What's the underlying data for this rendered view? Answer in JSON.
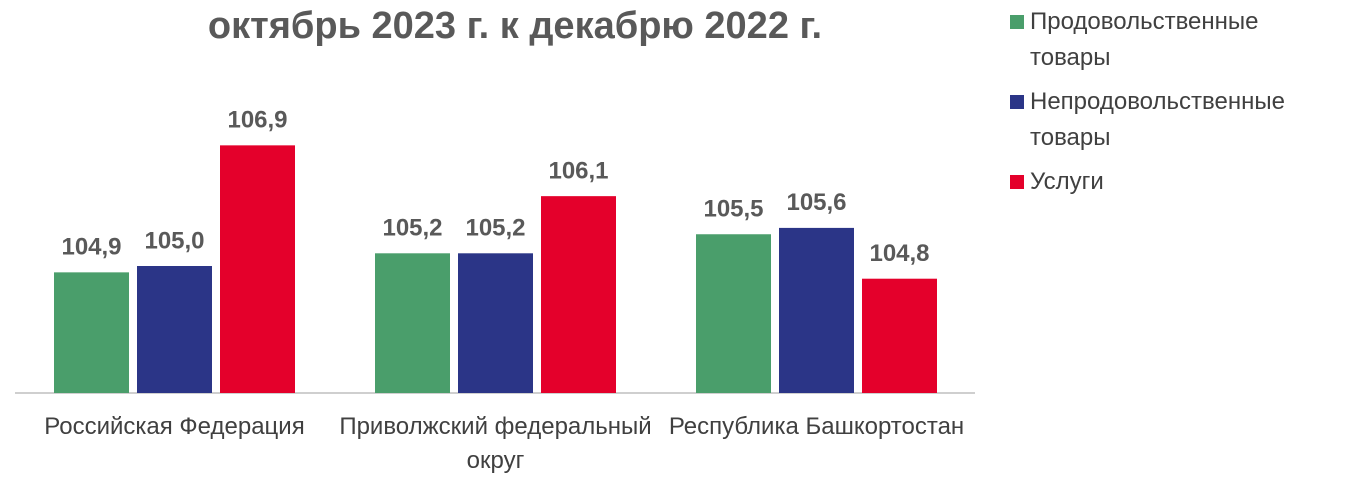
{
  "chart_data": {
    "type": "bar",
    "title": "октябрь 2023 г. к декабрю 2022 г.",
    "categories": [
      "Российская Федерация",
      "Приволжский федеральный округ",
      "Республика Башкортостан"
    ],
    "series": [
      {
        "name": "Продовольственные товары",
        "color": "#4a9e6b",
        "values": [
          104.9,
          105.2,
          105.5
        ],
        "value_labels": [
          "104,9",
          "105,2",
          "105,5"
        ]
      },
      {
        "name": "Непродовольственные товары",
        "color": "#2b3587",
        "values": [
          105.0,
          105.2,
          105.6
        ],
        "value_labels": [
          "105,0",
          "105,2",
          "105,6"
        ]
      },
      {
        "name": "Услуги",
        "color": "#e4002b",
        "values": [
          106.9,
          106.1,
          104.8
        ],
        "value_labels": [
          "106,9",
          "106,1",
          "104,8"
        ]
      }
    ],
    "ylim": [
      103,
      108
    ],
    "legend": "right"
  }
}
